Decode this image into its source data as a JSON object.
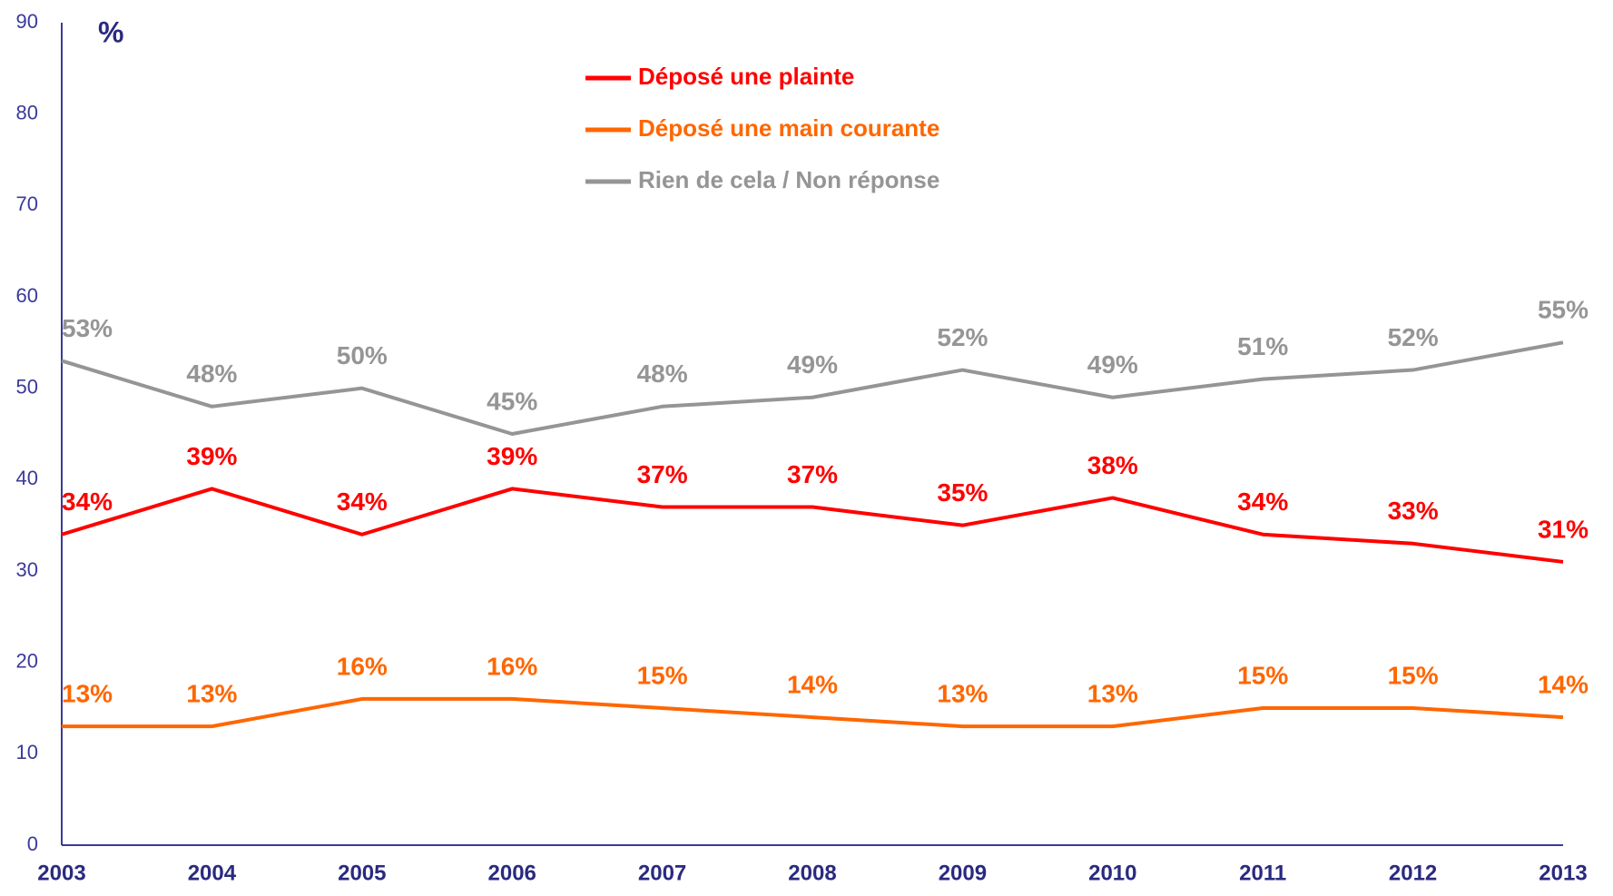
{
  "chart_data": {
    "type": "line",
    "y_unit": "%",
    "categories": [
      "2003",
      "2004",
      "2005",
      "2006",
      "2007",
      "2008",
      "2009",
      "2010",
      "2011",
      "2012",
      "2013"
    ],
    "series": [
      {
        "name": "Déposé une plainte",
        "color": "#ff0000",
        "values": [
          34,
          39,
          34,
          39,
          37,
          37,
          35,
          38,
          34,
          33,
          31
        ],
        "value_labels": [
          "34%",
          "39%",
          "34%",
          "39%",
          "37%",
          "37%",
          "35%",
          "38%",
          "34%",
          "33%",
          "31%"
        ]
      },
      {
        "name": "Déposé une main courante",
        "color": "#ff6600",
        "values": [
          13,
          13,
          16,
          16,
          15,
          14,
          13,
          13,
          15,
          15,
          14
        ],
        "value_labels": [
          "13%",
          "13%",
          "16%",
          "16%",
          "15%",
          "14%",
          "13%",
          "13%",
          "15%",
          "15%",
          "14%"
        ]
      },
      {
        "name": "Rien de cela / Non réponse",
        "color": "#959595",
        "values": [
          53,
          48,
          50,
          45,
          48,
          49,
          52,
          49,
          51,
          52,
          55
        ],
        "value_labels": [
          "53%",
          "48%",
          "50%",
          "45%",
          "48%",
          "49%",
          "52%",
          "49%",
          "51%",
          "52%",
          "55%"
        ]
      }
    ],
    "ylim": [
      0,
      90
    ],
    "yticks": [
      0,
      10,
      20,
      30,
      40,
      50,
      60,
      70,
      80,
      90
    ],
    "grid": false
  }
}
